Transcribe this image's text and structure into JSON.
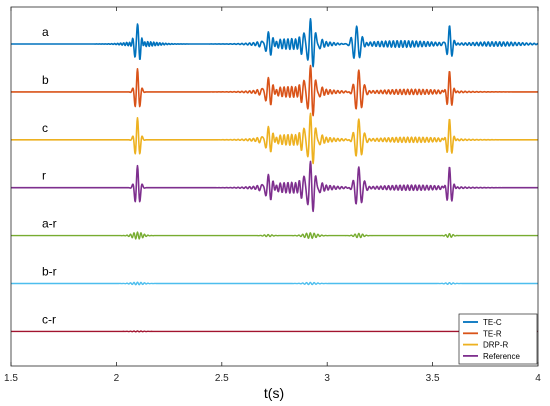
{
  "chart_data": {
    "type": "line",
    "xlabel": "t(s)",
    "xlim": [
      1.5,
      4
    ],
    "x_ticks": [
      1.5,
      2,
      2.5,
      3,
      3.5,
      4
    ],
    "x_tick_labels": [
      "1.5",
      "2",
      "2.5",
      "3",
      "3.5",
      "4"
    ],
    "grid": false,
    "legend_position": "bottom-right",
    "trace_labels": [
      "a",
      "b",
      "c",
      "r",
      "a-r",
      "b-r",
      "c-r"
    ],
    "series": [
      {
        "name": "TE-C",
        "color": "#0072BD"
      },
      {
        "name": "TE-R",
        "color": "#D95319"
      },
      {
        "name": "DRP-R",
        "color": "#EDB120"
      },
      {
        "name": "Reference",
        "color": "#7E2F8E"
      }
    ],
    "traces": [
      {
        "label": "a",
        "color": "#0072BD",
        "line_width": 1.6,
        "events": [
          {
            "t": 2.1,
            "amp": 1.0,
            "f": 42,
            "sigma": 0.012
          },
          {
            "t": 2.12,
            "amp": 0.12,
            "f": 70,
            "sigma": 0.07
          },
          {
            "t": 2.72,
            "amp": 0.45,
            "f": 38,
            "sigma": 0.02
          },
          {
            "t": 2.92,
            "amp": 1.0,
            "f": 36,
            "sigma": 0.025
          },
          {
            "t": 3.14,
            "amp": 0.85,
            "f": 36,
            "sigma": 0.018
          },
          {
            "t": 3.58,
            "amp": 0.85,
            "f": 40,
            "sigma": 0.012
          },
          {
            "t": 2.85,
            "amp": 0.25,
            "f": 55,
            "sigma": 0.12
          },
          {
            "t": 3.35,
            "amp": 0.15,
            "f": 55,
            "sigma": 0.15
          },
          {
            "t": 3.8,
            "amp": 0.1,
            "f": 55,
            "sigma": 0.12
          }
        ]
      },
      {
        "label": "b",
        "color": "#D95319",
        "line_width": 1.6,
        "events": [
          {
            "t": 2.1,
            "amp": 1.05,
            "f": 42,
            "sigma": 0.012
          },
          {
            "t": 2.72,
            "amp": 0.55,
            "f": 38,
            "sigma": 0.02
          },
          {
            "t": 2.92,
            "amp": 1.05,
            "f": 36,
            "sigma": 0.025
          },
          {
            "t": 3.15,
            "amp": 1.0,
            "f": 36,
            "sigma": 0.018
          },
          {
            "t": 3.58,
            "amp": 0.9,
            "f": 40,
            "sigma": 0.012
          },
          {
            "t": 2.85,
            "amp": 0.25,
            "f": 55,
            "sigma": 0.12
          },
          {
            "t": 3.4,
            "amp": 0.12,
            "f": 55,
            "sigma": 0.15
          }
        ]
      },
      {
        "label": "c",
        "color": "#EDB120",
        "line_width": 1.6,
        "events": [
          {
            "t": 2.1,
            "amp": 1.0,
            "f": 42,
            "sigma": 0.012
          },
          {
            "t": 2.72,
            "amp": 0.5,
            "f": 38,
            "sigma": 0.02
          },
          {
            "t": 2.92,
            "amp": 1.05,
            "f": 36,
            "sigma": 0.025
          },
          {
            "t": 3.15,
            "amp": 0.95,
            "f": 36,
            "sigma": 0.018
          },
          {
            "t": 3.58,
            "amp": 0.9,
            "f": 40,
            "sigma": 0.012
          },
          {
            "t": 2.85,
            "amp": 0.25,
            "f": 55,
            "sigma": 0.12
          },
          {
            "t": 3.4,
            "amp": 0.12,
            "f": 55,
            "sigma": 0.15
          }
        ]
      },
      {
        "label": "r",
        "color": "#7E2F8E",
        "line_width": 1.6,
        "events": [
          {
            "t": 2.1,
            "amp": 1.0,
            "f": 42,
            "sigma": 0.012
          },
          {
            "t": 2.72,
            "amp": 0.5,
            "f": 38,
            "sigma": 0.02
          },
          {
            "t": 2.92,
            "amp": 1.05,
            "f": 36,
            "sigma": 0.025
          },
          {
            "t": 3.15,
            "amp": 0.95,
            "f": 36,
            "sigma": 0.018
          },
          {
            "t": 3.58,
            "amp": 0.9,
            "f": 40,
            "sigma": 0.012
          },
          {
            "t": 2.85,
            "amp": 0.25,
            "f": 55,
            "sigma": 0.12
          },
          {
            "t": 3.4,
            "amp": 0.12,
            "f": 55,
            "sigma": 0.15
          }
        ]
      },
      {
        "label": "a-r",
        "color": "#77AC30",
        "line_width": 1.4,
        "events": [
          {
            "t": 2.1,
            "amp": 0.16,
            "f": 60,
            "sigma": 0.025
          },
          {
            "t": 2.92,
            "amp": 0.13,
            "f": 55,
            "sigma": 0.03
          },
          {
            "t": 3.15,
            "amp": 0.1,
            "f": 55,
            "sigma": 0.02
          },
          {
            "t": 3.58,
            "amp": 0.09,
            "f": 55,
            "sigma": 0.015
          },
          {
            "t": 2.72,
            "amp": 0.05,
            "f": 55,
            "sigma": 0.02
          }
        ]
      },
      {
        "label": "b-r",
        "color": "#4DBEEE",
        "line_width": 1.4,
        "events": [
          {
            "t": 2.1,
            "amp": 0.06,
            "f": 60,
            "sigma": 0.03
          },
          {
            "t": 2.92,
            "amp": 0.05,
            "f": 55,
            "sigma": 0.03
          },
          {
            "t": 3.58,
            "amp": 0.04,
            "f": 55,
            "sigma": 0.02
          }
        ]
      },
      {
        "label": "c-r",
        "color": "#A2142F",
        "line_width": 1.4,
        "events": [
          {
            "t": 2.1,
            "amp": 0.02,
            "f": 60,
            "sigma": 0.03
          }
        ]
      }
    ]
  }
}
